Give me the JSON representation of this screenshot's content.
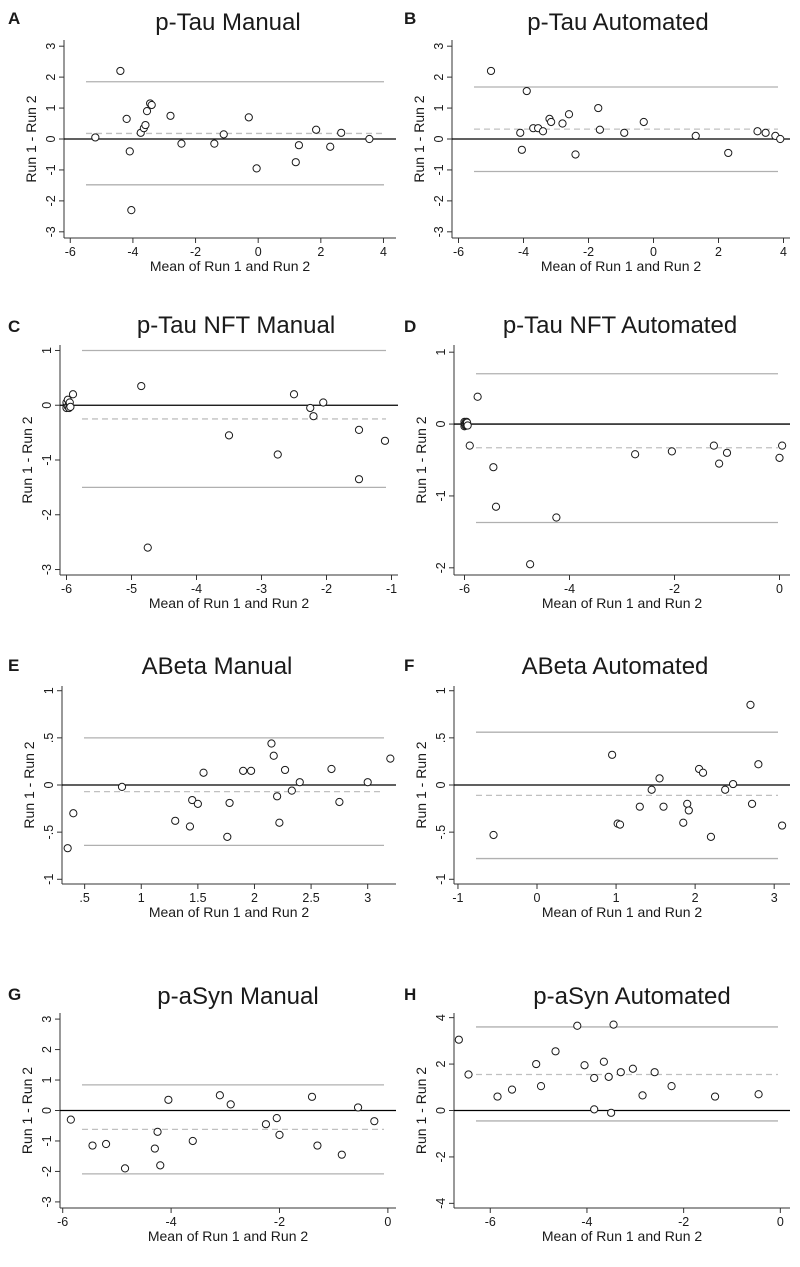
{
  "colors": {
    "zero_line": "#000000",
    "limit_line": "#b0b0b0",
    "mean_line": "#c0c0c0",
    "marker": "#1a1a1a",
    "marker_fill": "#ffffff"
  },
  "chart_data": [
    {
      "letter": "A",
      "type": "scatter",
      "title": "p-Tau Manual",
      "xlabel": "Mean of Run 1 and Run 2",
      "ylabel": "Run 1 - Run 2",
      "xlim": [
        -6.2,
        4.4
      ],
      "ylim": [
        -3.2,
        3.2
      ],
      "xticks": [
        -6,
        -4,
        -2,
        0,
        2,
        4
      ],
      "xtick_labels": [
        "-6",
        "-4",
        "-2",
        "0",
        "2",
        "4"
      ],
      "yticks": [
        -3,
        -2,
        -1,
        0,
        1,
        2,
        3
      ],
      "ytick_labels": [
        "-3",
        "-2",
        "-1",
        "0",
        "1",
        "2",
        "3"
      ],
      "mean_diff": 0.18,
      "loa_upper": 1.85,
      "loa_lower": -1.48,
      "x": [
        -5.2,
        -4.4,
        -4.2,
        -4.1,
        -4.05,
        -3.75,
        -3.65,
        -3.6,
        -3.55,
        -3.45,
        -3.4,
        -2.8,
        -2.45,
        -1.4,
        -1.1,
        -0.3,
        -0.05,
        1.2,
        1.3,
        1.85,
        2.3,
        2.65,
        3.55
      ],
      "y": [
        0.05,
        2.2,
        0.65,
        -0.4,
        -2.3,
        0.2,
        0.35,
        0.45,
        0.9,
        1.15,
        1.1,
        0.75,
        -0.15,
        -0.15,
        0.15,
        0.7,
        -0.95,
        -0.75,
        -0.2,
        0.3,
        -0.25,
        0.2,
        0.0
      ]
    },
    {
      "letter": "B",
      "type": "scatter",
      "title": "p-Tau Automated",
      "xlabel": "Mean of Run 1 and Run 2",
      "ylabel": "Run 1 - Run 2",
      "xlim": [
        -6.2,
        4.2
      ],
      "ylim": [
        -3.2,
        3.2
      ],
      "xticks": [
        -6,
        -4,
        -2,
        0,
        2,
        4
      ],
      "xtick_labels": [
        "-6",
        "-4",
        "-2",
        "0",
        "2",
        "4"
      ],
      "yticks": [
        -3,
        -2,
        -1,
        0,
        1,
        2,
        3
      ],
      "ytick_labels": [
        "-3",
        "-2",
        "-1",
        "0",
        "1",
        "2",
        "3"
      ],
      "mean_diff": 0.32,
      "loa_upper": 1.68,
      "loa_lower": -1.05,
      "x": [
        -5.0,
        -4.1,
        -4.05,
        -3.9,
        -3.7,
        -3.55,
        -3.4,
        -3.2,
        -3.15,
        -2.8,
        -2.6,
        -2.4,
        -1.7,
        -1.65,
        -0.9,
        -0.3,
        1.3,
        2.3,
        3.2,
        3.45,
        3.75,
        3.9
      ],
      "y": [
        2.2,
        0.2,
        -0.35,
        1.55,
        0.35,
        0.35,
        0.25,
        0.65,
        0.55,
        0.5,
        0.8,
        -0.5,
        1.0,
        0.3,
        0.2,
        0.55,
        0.1,
        -0.45,
        0.25,
        0.2,
        0.1,
        0.0
      ]
    },
    {
      "letter": "C",
      "type": "scatter",
      "title": "p-Tau NFT Manual",
      "xlabel": "Mean of Run 1 and Run 2",
      "ylabel": "Run 1 - Run 2",
      "xlim": [
        -6.1,
        -0.9
      ],
      "ylim": [
        -3.1,
        1.1
      ],
      "xticks": [
        -6,
        -5,
        -4,
        -3,
        -2,
        -1
      ],
      "xtick_labels": [
        "-6",
        "-5",
        "-4",
        "-3",
        "-2",
        "-1"
      ],
      "yticks": [
        -3,
        -2,
        -1,
        0,
        1
      ],
      "ytick_labels": [
        "-3",
        "-2",
        "-1",
        "0",
        "1"
      ],
      "mean_diff": -0.25,
      "loa_upper": 1.0,
      "loa_lower": -1.5,
      "x": [
        -6.0,
        -6.0,
        -6.0,
        -5.98,
        -5.98,
        -5.96,
        -5.96,
        -5.95,
        -5.95,
        -5.94,
        -5.9,
        -4.85,
        -4.75,
        -3.5,
        -2.75,
        -2.5,
        -2.25,
        -2.2,
        -2.05,
        -1.5,
        -1.5,
        -1.1
      ],
      "y": [
        0.0,
        0.05,
        -0.05,
        0.1,
        -0.02,
        0.03,
        -0.05,
        0.0,
        0.05,
        -0.03,
        0.2,
        0.35,
        -2.6,
        -0.55,
        -0.9,
        0.2,
        -0.05,
        -0.2,
        0.05,
        -0.45,
        -1.35,
        -0.65
      ]
    },
    {
      "letter": "D",
      "type": "scatter",
      "title": "p-Tau NFT Automated",
      "xlabel": "Mean of Run 1 and Run 2",
      "ylabel": "Run 1 - Run 2",
      "xlim": [
        -6.2,
        0.2
      ],
      "ylim": [
        -2.1,
        1.1
      ],
      "xticks": [
        -6,
        -4,
        -2,
        0
      ],
      "xtick_labels": [
        "-6",
        "-4",
        "-2",
        "0"
      ],
      "yticks": [
        -2,
        -1,
        0,
        1
      ],
      "ytick_labels": [
        "-2",
        "-1",
        "0",
        "1"
      ],
      "mean_diff": -0.33,
      "loa_upper": 0.7,
      "loa_lower": -1.37,
      "x": [
        -6.0,
        -6.0,
        -6.0,
        -5.98,
        -5.98,
        -5.96,
        -5.96,
        -5.95,
        -5.95,
        -5.94,
        -5.9,
        -5.75,
        -5.45,
        -5.4,
        -4.75,
        -4.25,
        -2.75,
        -2.05,
        -1.25,
        -1.15,
        -1.0,
        0.0,
        0.05
      ],
      "y": [
        0.0,
        0.03,
        -0.03,
        0.02,
        -0.02,
        0.03,
        -0.02,
        0.0,
        0.02,
        -0.02,
        -0.3,
        0.38,
        -0.6,
        -1.15,
        -1.95,
        -1.3,
        -0.42,
        -0.38,
        -0.3,
        -0.55,
        -0.4,
        -0.47,
        -0.3
      ]
    },
    {
      "letter": "E",
      "type": "scatter",
      "title": "ABeta Manual",
      "xlabel": "Mean of Run 1 and Run 2",
      "ylabel": "Run 1 - Run 2",
      "xlim": [
        0.3,
        3.25
      ],
      "ylim": [
        -1.05,
        1.05
      ],
      "xticks": [
        0.5,
        1,
        1.5,
        2,
        2.5,
        3
      ],
      "xtick_labels": [
        ".5",
        "1",
        "1.5",
        "2",
        "2.5",
        "3"
      ],
      "yticks": [
        -1,
        -0.5,
        0,
        0.5,
        1
      ],
      "ytick_labels": [
        "-1",
        "-.5",
        "0",
        ".5",
        "1"
      ],
      "mean_diff": -0.07,
      "loa_upper": 0.5,
      "loa_lower": -0.64,
      "x": [
        0.35,
        0.4,
        0.83,
        1.3,
        1.43,
        1.45,
        1.5,
        1.55,
        1.76,
        1.78,
        1.9,
        1.97,
        2.15,
        2.17,
        2.2,
        2.22,
        2.27,
        2.33,
        2.4,
        2.68,
        2.75,
        3.0,
        3.2
      ],
      "y": [
        -0.67,
        -0.3,
        -0.02,
        -0.38,
        -0.44,
        -0.16,
        -0.2,
        0.13,
        -0.55,
        -0.19,
        0.15,
        0.15,
        0.44,
        0.31,
        -0.12,
        -0.4,
        0.16,
        -0.06,
        0.03,
        0.17,
        -0.18,
        0.03,
        0.28
      ]
    },
    {
      "letter": "F",
      "type": "scatter",
      "title": "ABeta Automated",
      "xlabel": "Mean of Run 1 and Run 2",
      "ylabel": "Run 1 - Run 2",
      "xlim": [
        -1.05,
        3.2
      ],
      "ylim": [
        -1.05,
        1.05
      ],
      "xticks": [
        -1,
        0,
        1,
        2,
        3
      ],
      "xtick_labels": [
        "-1",
        "0",
        "1",
        "2",
        "3"
      ],
      "yticks": [
        -1,
        -0.5,
        0,
        0.5,
        1
      ],
      "ytick_labels": [
        "-1",
        "-.5",
        "0",
        ".5",
        "1"
      ],
      "mean_diff": -0.11,
      "loa_upper": 0.56,
      "loa_lower": -0.78,
      "x": [
        -0.55,
        0.95,
        1.02,
        1.05,
        1.3,
        1.45,
        1.55,
        1.6,
        1.85,
        1.9,
        1.92,
        2.05,
        2.1,
        2.2,
        2.38,
        2.48,
        2.7,
        2.72,
        2.8,
        3.1
      ],
      "y": [
        -0.53,
        0.32,
        -0.41,
        -0.42,
        -0.23,
        -0.05,
        0.07,
        -0.23,
        -0.4,
        -0.2,
        -0.27,
        0.17,
        0.13,
        -0.55,
        -0.05,
        0.01,
        0.85,
        -0.2,
        0.22,
        -0.43
      ]
    },
    {
      "letter": "G",
      "type": "scatter",
      "title": "p-aSyn Manual",
      "xlabel": "Mean of Run 1 and Run 2",
      "ylabel": "Run 1 - Run 2",
      "xlim": [
        -6.05,
        0.15
      ],
      "ylim": [
        -3.2,
        3.2
      ],
      "xticks": [
        -6,
        -4,
        -2,
        0
      ],
      "xtick_labels": [
        "-6",
        "-4",
        "-2",
        "0"
      ],
      "yticks": [
        -3,
        -2,
        -1,
        0,
        1,
        2,
        3
      ],
      "ytick_labels": [
        "-3",
        "-2",
        "-1",
        "0",
        "1",
        "2",
        "3"
      ],
      "mean_diff": -0.62,
      "loa_upper": 0.84,
      "loa_lower": -2.08,
      "x": [
        -5.85,
        -5.45,
        -5.2,
        -4.85,
        -4.3,
        -4.25,
        -4.2,
        -4.05,
        -3.6,
        -3.1,
        -2.9,
        -2.25,
        -2.05,
        -2.0,
        -1.4,
        -1.3,
        -0.85,
        -0.55,
        -0.25
      ],
      "y": [
        -0.3,
        -1.15,
        -1.1,
        -1.9,
        -1.25,
        -0.7,
        -1.8,
        0.35,
        -1.0,
        0.5,
        0.2,
        -0.45,
        -0.25,
        -0.8,
        0.45,
        -1.15,
        -1.45,
        0.1,
        -0.35
      ]
    },
    {
      "letter": "H",
      "type": "scatter",
      "title": "p-aSyn Automated",
      "xlabel": "Mean of Run 1 and Run 2",
      "ylabel": "Run 1 - Run 2",
      "xlim": [
        -6.75,
        0.2
      ],
      "ylim": [
        -4.2,
        4.2
      ],
      "xticks": [
        -6,
        -4,
        -2,
        0
      ],
      "xtick_labels": [
        "-6",
        "-4",
        "-2",
        "0"
      ],
      "yticks": [
        -4,
        -2,
        0,
        2,
        4
      ],
      "ytick_labels": [
        "-4",
        "-2",
        "0",
        "2",
        "4"
      ],
      "mean_diff": 1.55,
      "loa_upper": 3.6,
      "loa_lower": -0.45,
      "x": [
        -6.65,
        -6.45,
        -5.85,
        -5.55,
        -5.05,
        -4.95,
        -4.65,
        -4.2,
        -4.05,
        -3.85,
        -3.85,
        -3.65,
        -3.55,
        -3.5,
        -3.45,
        -3.3,
        -3.05,
        -2.85,
        -2.6,
        -2.25,
        -1.35,
        -0.45
      ],
      "y": [
        3.05,
        1.55,
        0.6,
        0.9,
        2.0,
        1.05,
        2.55,
        3.65,
        1.95,
        1.4,
        0.05,
        2.1,
        1.45,
        -0.1,
        3.7,
        1.65,
        1.8,
        0.65,
        1.65,
        1.05,
        0.6,
        0.7
      ]
    }
  ]
}
